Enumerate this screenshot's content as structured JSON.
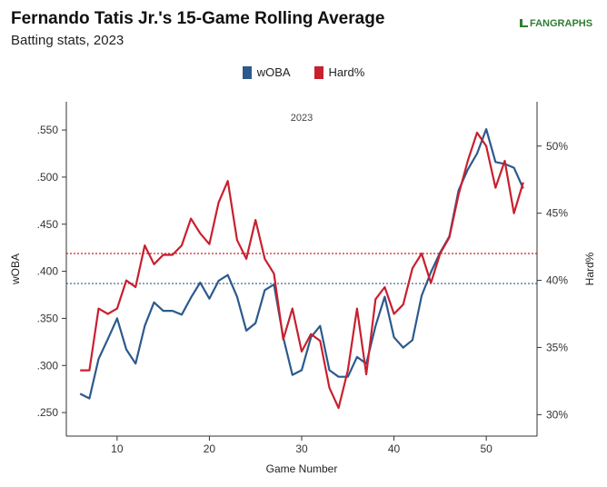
{
  "header": {
    "title": "Fernando Tatis Jr.'s 15-Game Rolling Average",
    "subtitle": "Batting stats, 2023",
    "brand": "FANGRAPHS"
  },
  "colors": {
    "woba": "#2c5a8c",
    "hard": "#c8202f",
    "axis": "#333333"
  },
  "chart_data": {
    "type": "line",
    "panel_label": "2023",
    "xlabel": "Game Number",
    "ylabel_left": "wOBA",
    "ylabel_right": "Hard%",
    "x_ticks": [
      10,
      20,
      30,
      40,
      50
    ],
    "y_left_ticks": [
      ".250",
      ".300",
      ".350",
      ".400",
      ".450",
      ".500",
      ".550"
    ],
    "y_left_range": [
      0.225,
      0.58
    ],
    "y_right_ticks": [
      "30%",
      "35%",
      "40%",
      "45%",
      "50%"
    ],
    "y_right_range": [
      28.4,
      53.3
    ],
    "x_range": [
      4.5,
      55.5
    ],
    "legend": [
      "wOBA",
      "Hard%"
    ],
    "reference_lines": {
      "woba_avg": 0.387,
      "hard_avg": 42.0
    },
    "series": [
      {
        "name": "wOBA",
        "x": [
          6,
          7,
          8,
          9,
          10,
          11,
          12,
          13,
          14,
          15,
          16,
          17,
          18,
          19,
          20,
          21,
          22,
          23,
          24,
          25,
          26,
          27,
          28,
          29,
          30,
          31,
          32,
          33,
          34,
          35,
          36,
          37,
          38,
          39,
          40,
          41,
          42,
          43,
          44,
          45,
          46,
          47,
          48,
          49,
          50,
          51,
          52,
          53,
          54
        ],
        "values": [
          0.27,
          0.265,
          0.307,
          0.328,
          0.35,
          0.317,
          0.302,
          0.342,
          0.367,
          0.358,
          0.358,
          0.354,
          0.372,
          0.388,
          0.371,
          0.39,
          0.396,
          0.373,
          0.337,
          0.345,
          0.38,
          0.386,
          0.33,
          0.29,
          0.295,
          0.33,
          0.342,
          0.295,
          0.288,
          0.288,
          0.309,
          0.302,
          0.342,
          0.373,
          0.33,
          0.319,
          0.327,
          0.374,
          0.399,
          0.42,
          0.437,
          0.486,
          0.508,
          0.525,
          0.551,
          0.516,
          0.514,
          0.51,
          0.488
        ]
      },
      {
        "name": "Hard%",
        "x": [
          6,
          7,
          8,
          9,
          10,
          11,
          12,
          13,
          14,
          15,
          16,
          17,
          18,
          19,
          20,
          21,
          22,
          23,
          24,
          25,
          26,
          27,
          28,
          29,
          30,
          31,
          32,
          33,
          34,
          35,
          36,
          37,
          38,
          39,
          40,
          41,
          42,
          43,
          44,
          45,
          46,
          47,
          48,
          49,
          50,
          51,
          52,
          53,
          54
        ],
        "values": [
          33.3,
          33.3,
          37.9,
          37.5,
          37.9,
          40.0,
          39.5,
          42.6,
          41.2,
          41.9,
          41.9,
          42.6,
          44.6,
          43.5,
          42.7,
          45.8,
          47.4,
          43.0,
          41.6,
          44.5,
          41.6,
          40.5,
          35.6,
          37.9,
          34.7,
          36.0,
          35.5,
          32.0,
          30.5,
          33.3,
          37.9,
          33.0,
          38.6,
          39.5,
          37.5,
          38.2,
          40.9,
          42.0,
          39.8,
          42.0,
          43.2,
          46.4,
          48.9,
          51.0,
          50.0,
          46.9,
          48.9,
          45.0,
          47.3
        ]
      }
    ]
  }
}
